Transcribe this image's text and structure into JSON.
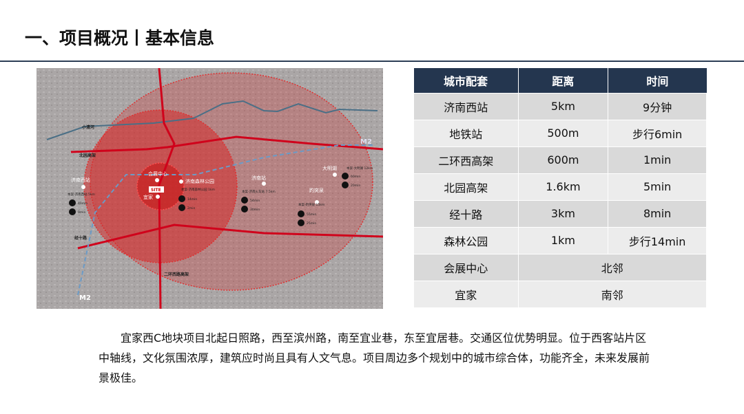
{
  "title": "一、项目概况丨基本信息",
  "map": {
    "labels": {
      "river": "小清河",
      "beiyuan": "北园高架",
      "jingshi": "经十路",
      "erhuan": "二环西路高架",
      "m2a": "M2",
      "m2b": "M2",
      "site": "SITE"
    },
    "pois": [
      {
        "name": "会展中心"
      },
      {
        "name": "济南森林公园",
        "route": "本案-济南森林公园 1km",
        "t1": "14min",
        "t2": "2min"
      },
      {
        "name": "宜家"
      },
      {
        "name": "济南西站",
        "route": "本案-济南西站 5km",
        "t1": "40min",
        "t2": "9min"
      },
      {
        "name": "济南站",
        "route": "本案-济南火车站 7.5km",
        "t1": "54min",
        "t2": "30min"
      },
      {
        "name": "趵突泉",
        "route": "本案-趵突泉 15km",
        "t1": "55min",
        "t2": "25min"
      },
      {
        "name": "大明湖",
        "route": "本案-大明湖 12km",
        "t1": "60min",
        "t2": "20min"
      }
    ],
    "colors": {
      "zone": "#d42a2a",
      "road": "#d0021b",
      "river": "#4a6f86",
      "metro": "#6b9bc7"
    }
  },
  "table": {
    "headers": [
      "城市配套",
      "距离",
      "时间"
    ],
    "rows": [
      [
        "济南西站",
        "5km",
        "9分钟"
      ],
      [
        "地铁站",
        "500m",
        "步行6min"
      ],
      [
        "二环西高架",
        "600m",
        "1min"
      ],
      [
        "北园高架",
        "1.6km",
        "5min"
      ],
      [
        "经十路",
        "3km",
        "8min"
      ],
      [
        "森林公园",
        "1km",
        "步行14min"
      ]
    ],
    "merged": [
      [
        "会展中心",
        "北邻"
      ],
      [
        "宜家",
        "南邻"
      ]
    ]
  },
  "paragraph": "宜家西C地块项目北起日照路，西至滨州路，南至宜业巷，东至宜居巷。交通区位优势明显。位于西客站片区中轴线，文化氛围浓厚，建筑应时尚且具有人文气息。项目周边多个规划中的城市综合体，功能齐全，未来发展前景极佳。"
}
